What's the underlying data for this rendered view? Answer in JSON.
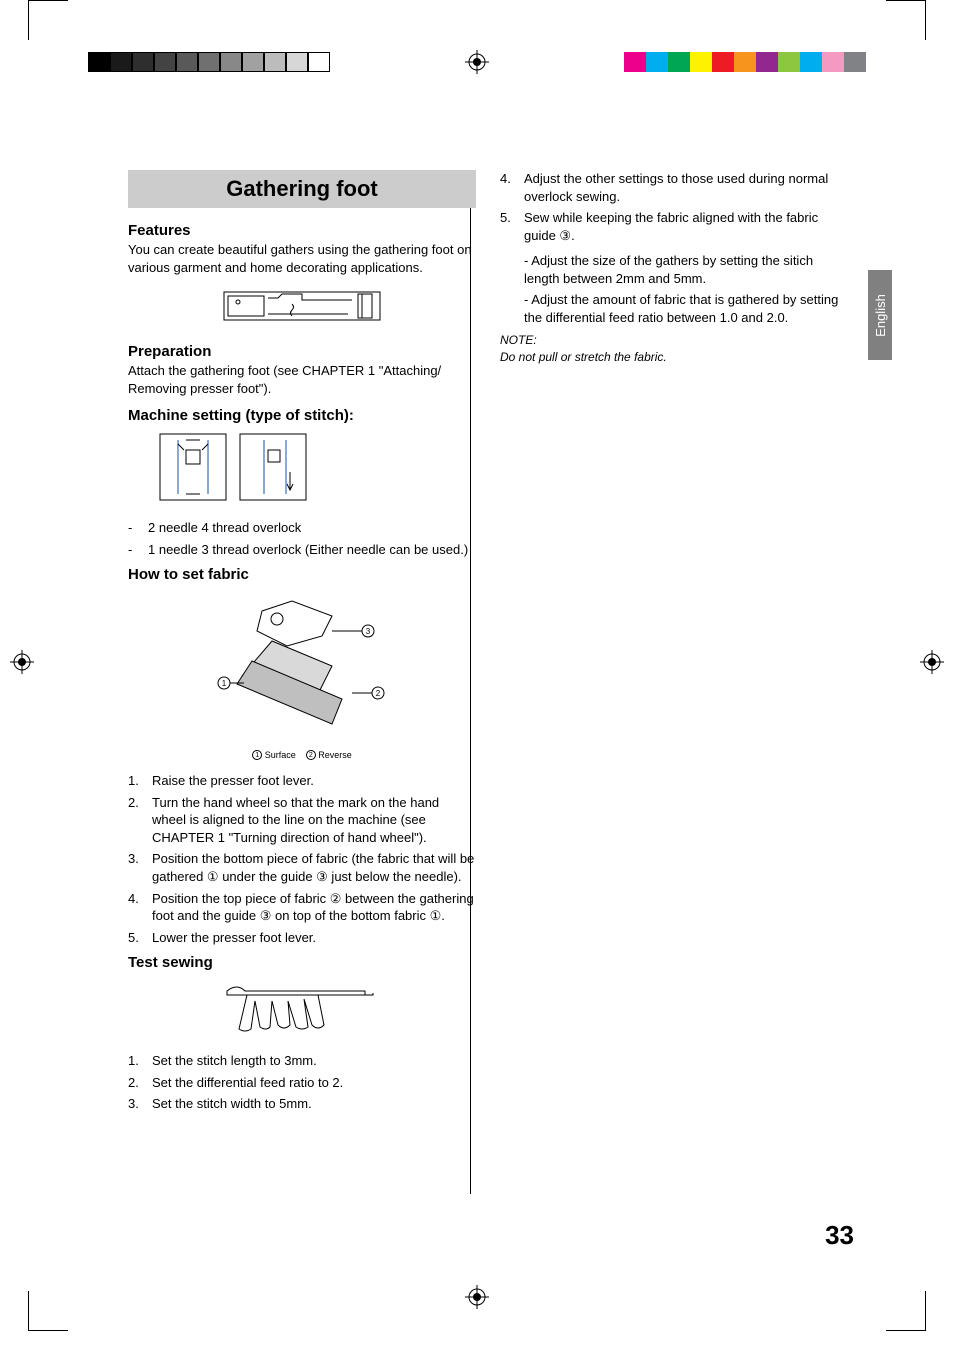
{
  "printerBars": {
    "leftGrays": [
      "#000000",
      "#1a1a1a",
      "#2e2e2e",
      "#434343",
      "#595959",
      "#707070",
      "#888888",
      "#a1a1a1",
      "#bcbcbc",
      "#d7d7d7",
      "#ffffff"
    ],
    "rightColors": [
      "#ec008c",
      "#00aeef",
      "#00a651",
      "#fff200",
      "#ed1c24",
      "#f7941d",
      "#92278f",
      "#8dc63f",
      "#00adef",
      "#f49ac1",
      "#808285"
    ],
    "border": "#000000"
  },
  "langTab": "English",
  "pageNumber": "33",
  "title": "Gathering foot",
  "sections": {
    "features": {
      "heading": "Features",
      "body": "You can create beautiful gathers using the gathering foot on various garment and home decorating applications."
    },
    "preparation": {
      "heading": "Preparation",
      "body": "Attach the gathering foot (see CHAPTER 1 \"Attaching/ Removing presser foot\")."
    },
    "machineSetting": {
      "heading": "Machine setting (type of stitch):",
      "items": [
        "2 needle 4 thread overlock",
        "1 needle 3 thread overlock (Either needle can be used.)"
      ]
    },
    "howToSet": {
      "heading": "How to set fabric",
      "captionParts": {
        "c1": "1",
        "l1": "Surface",
        "c2": "2",
        "l2": "Reverse"
      },
      "steps": [
        "Raise the presser foot lever.",
        "Turn the hand wheel so that the mark on the hand wheel is aligned to the line on the machine (see CHAPTER 1 \"Turning direction of hand wheel\").",
        "Position the bottom piece of fabric (the fabric that will be gathered ① under the guide ③ just below the needle).",
        "Position the top piece of fabric ② between the gathering foot and the guide ③ on top of the bottom fabric ①.",
        "Lower the presser foot lever."
      ]
    },
    "testSewing": {
      "heading": "Test sewing",
      "steps": [
        "Set the stitch length to 3mm.",
        "Set the differential feed ratio to 2.",
        "Set the stitch width to 5mm."
      ]
    },
    "rightCol": {
      "steps45": [
        {
          "n": "4.",
          "t": "Adjust the other settings to those used during normal overlock sewing."
        },
        {
          "n": "5.",
          "t": "Sew while keeping the fabric aligned with the fabric guide ③."
        }
      ],
      "subs": [
        "- Adjust the size of the gathers by setting the sitich length between 2mm and 5mm.",
        "- Adjust the amount of fabric that is gathered by setting the differential feed ratio between 1.0 and  2.0."
      ],
      "noteLabel": "NOTE:",
      "noteText": "Do not pull or stretch the fabric."
    }
  }
}
